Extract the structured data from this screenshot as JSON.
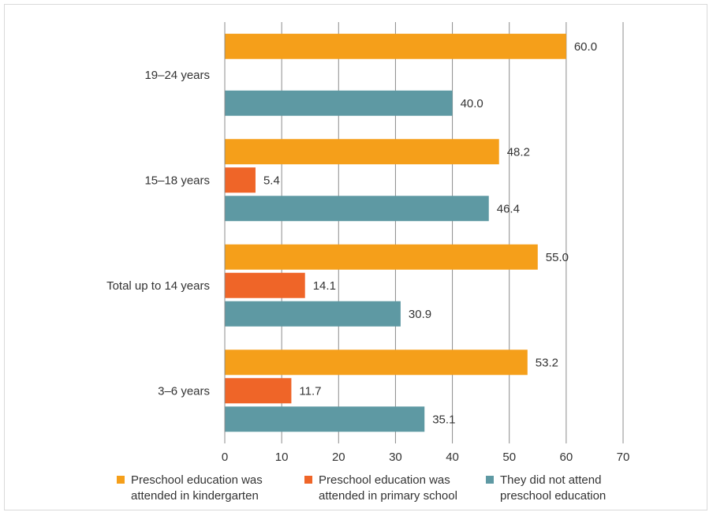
{
  "chart_data": {
    "type": "bar",
    "orientation": "horizontal",
    "categories": [
      "3–6 years",
      "Total up to 14 years",
      "15–18 years",
      "19–24 years"
    ],
    "series": [
      {
        "name": "Preschool education was\nattended in kindergarten",
        "color": "#F59F1A",
        "values": [
          53.2,
          55.0,
          48.2,
          60.0
        ]
      },
      {
        "name": "Preschool education was\nattended in primary school",
        "color": "#EF6528",
        "values": [
          11.7,
          14.1,
          5.4,
          null
        ]
      },
      {
        "name": "They did not attend\npreschool education",
        "color": "#5E99A3",
        "values": [
          35.1,
          30.9,
          46.4,
          40.0
        ]
      }
    ],
    "value_labels": [
      [
        "53.2",
        "55.0",
        "48.2",
        "60.0"
      ],
      [
        "11.7",
        "14.1",
        "5.4",
        ""
      ],
      [
        "35.1",
        "30.9",
        "46.4",
        "40.0"
      ]
    ],
    "xlim": [
      0,
      70
    ],
    "xticks": [
      "0",
      "10",
      "20",
      "30",
      "40",
      "50",
      "60",
      "70"
    ],
    "title": "",
    "xlabel": "",
    "ylabel": "",
    "grid": "vertical",
    "legend": "bottom"
  }
}
